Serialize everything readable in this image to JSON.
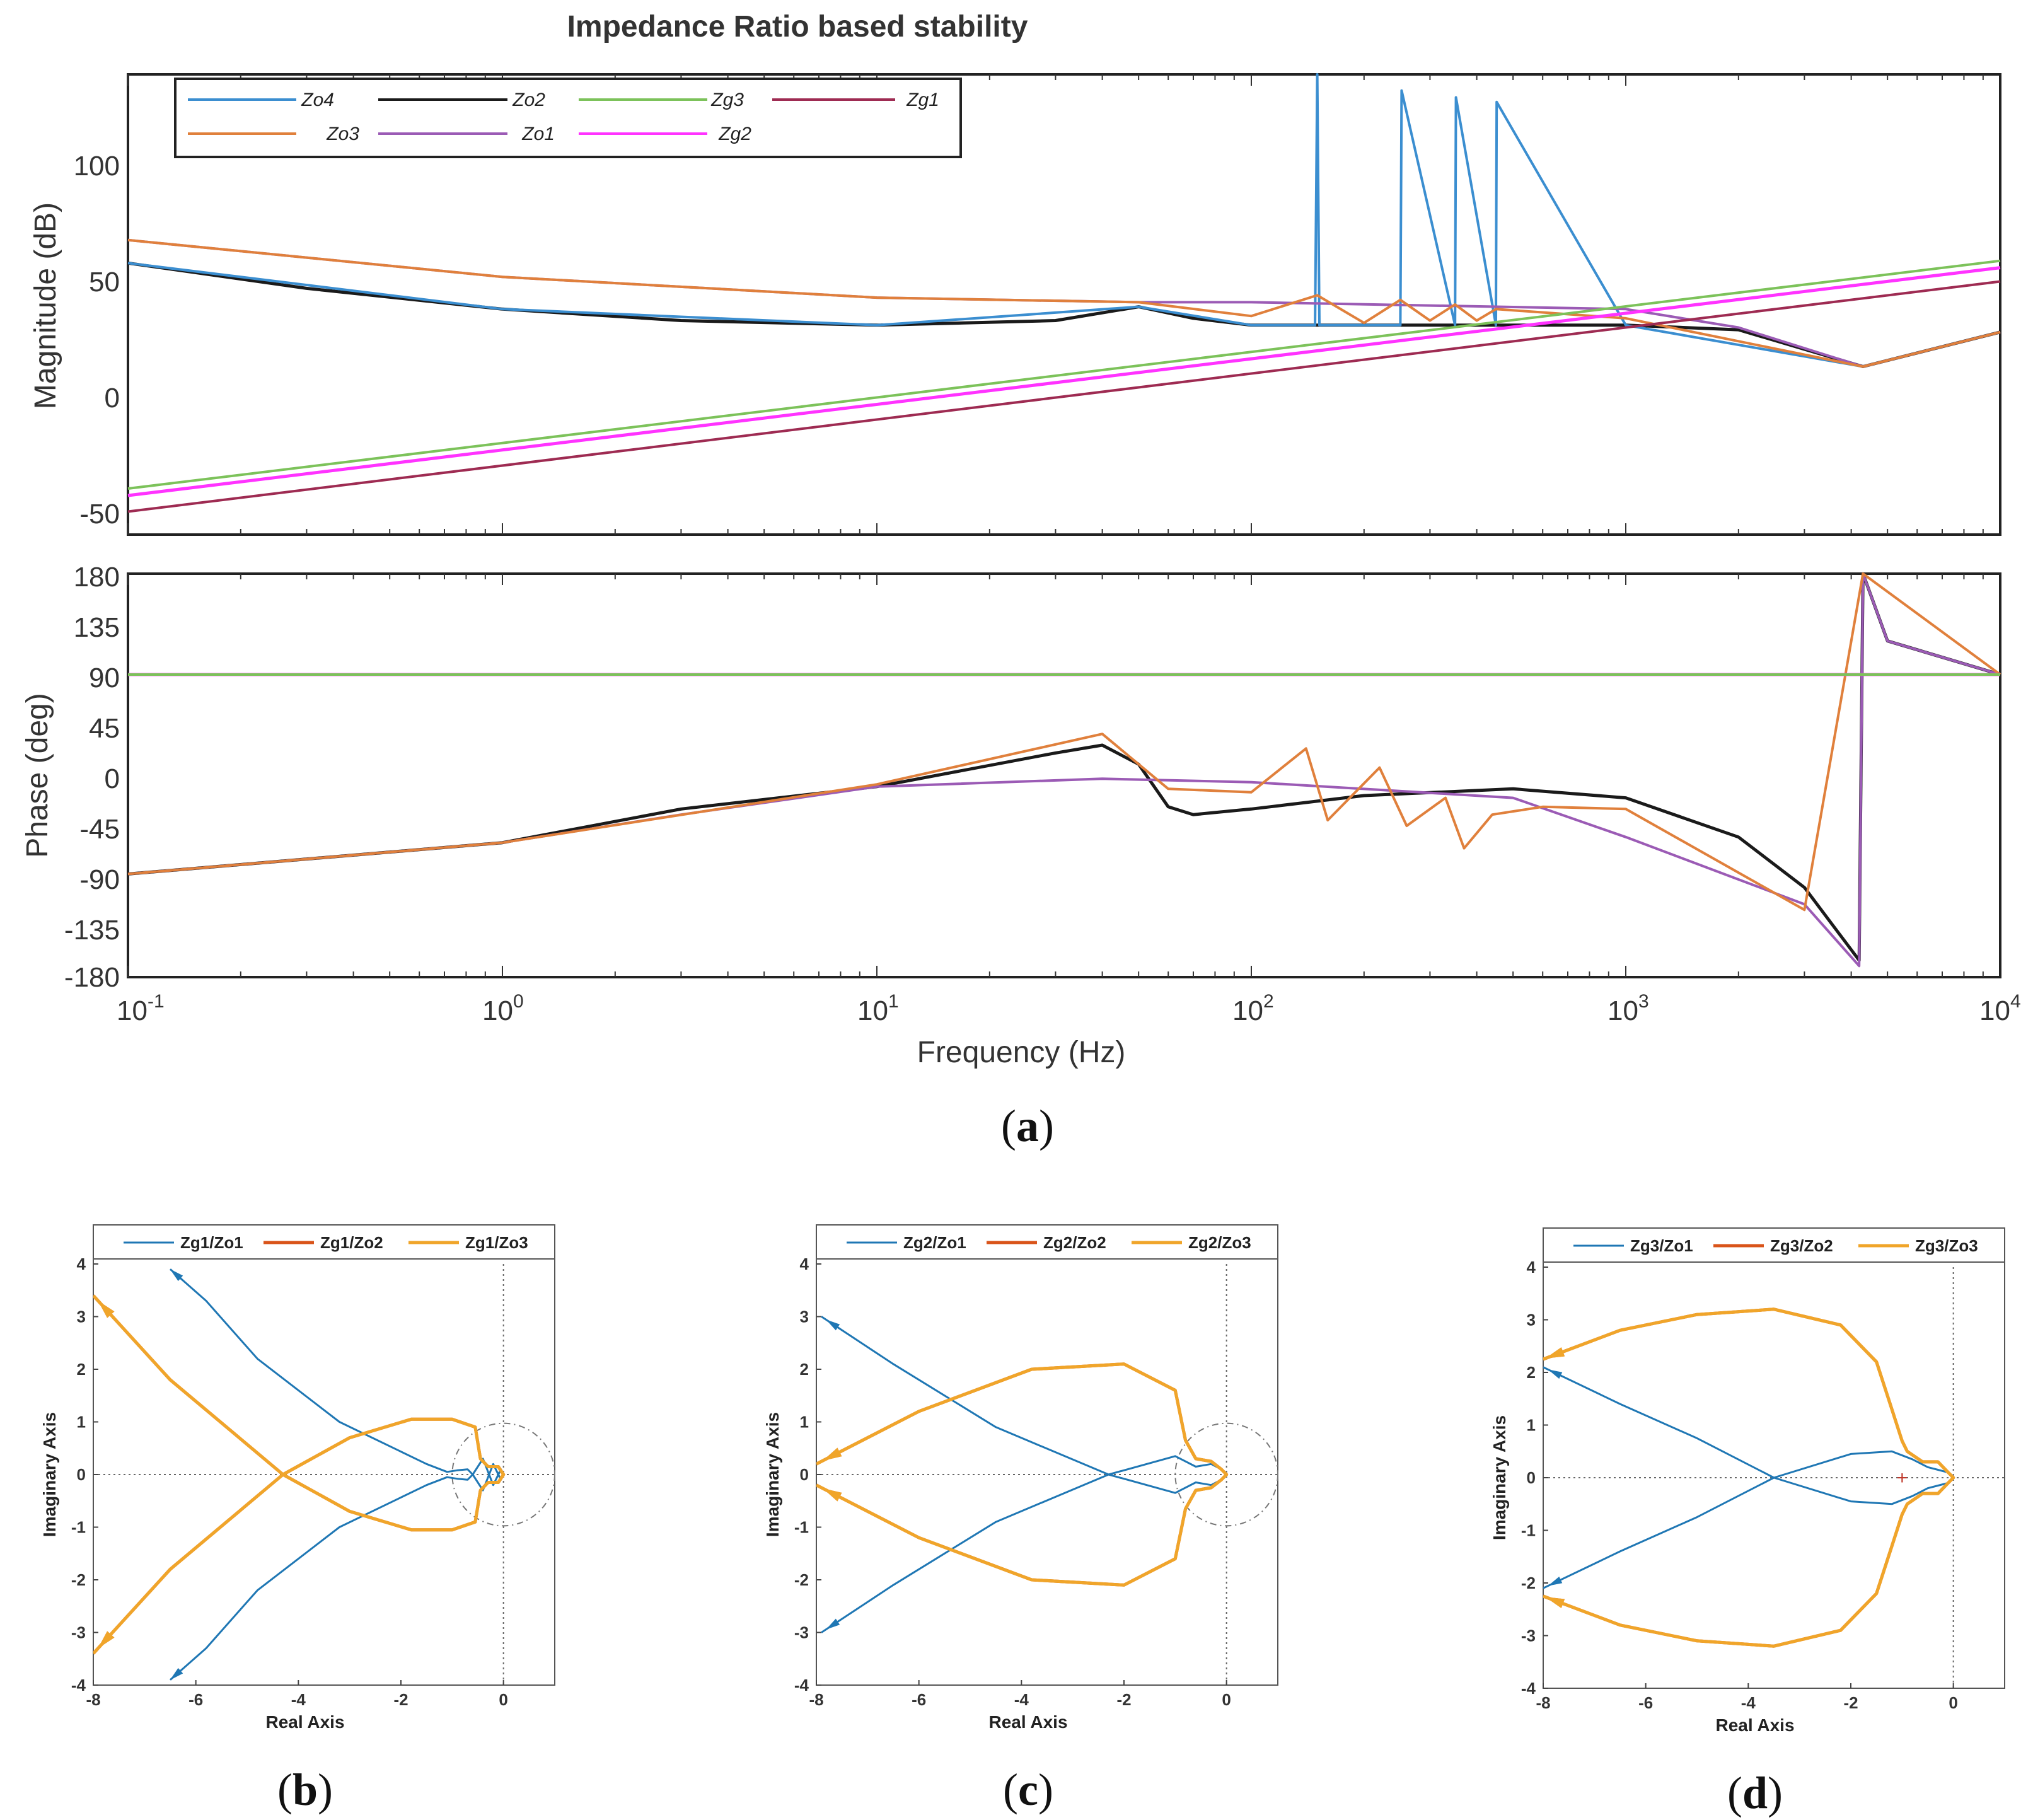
{
  "colors": {
    "Zo4": "#3b8ed0",
    "Zo3": "#e0803c",
    "Zo2": "#1a1a1a",
    "Zo1": "#9b5bb5",
    "Zg3": "#7cc25a",
    "Zg2": "#ff33ff",
    "Zg1": "#9e2b52",
    "nyq1": "#1f77b4",
    "nyq2": "#d9541a",
    "nyq3": "#f0a52a"
  },
  "bode": {
    "title": "Impedance Ratio based stability",
    "magnitude_ylabel": "Magnitude (dB)",
    "phase_ylabel": "Phase (deg)",
    "xlabel": "Frequency (Hz)",
    "caption_letter": "a",
    "legend": [
      "Zo4",
      "Zo2",
      "Zg3",
      "Zg1",
      "Zo3",
      "Zo1",
      "Zg2"
    ],
    "mag_yticks": [
      "100",
      "50",
      "0",
      "-50"
    ],
    "phase_yticks": [
      "180",
      "135",
      "90",
      "45",
      "0",
      "-45",
      "-90",
      "-135",
      "-180"
    ],
    "xtick_base": "10",
    "xtick_exps": [
      "-1",
      "0",
      "1",
      "2",
      "3",
      "4"
    ]
  },
  "nyquist": [
    {
      "caption_letter": "b",
      "legend": [
        "Zg1/Zo1",
        "Zg1/Zo2",
        "Zg1/Zo3"
      ],
      "xlabel": "Real Axis",
      "ylabel": "Imaginary Axis"
    },
    {
      "caption_letter": "c",
      "legend": [
        "Zg2/Zo1",
        "Zg2/Zo2",
        "Zg2/Zo3"
      ],
      "xlabel": "Real Axis",
      "ylabel": "Imaginary Axis"
    },
    {
      "caption_letter": "d",
      "legend": [
        "Zg3/Zo1",
        "Zg3/Zo2",
        "Zg3/Zo3"
      ],
      "xlabel": "Real Axis",
      "ylabel": "Imaginary Axis"
    }
  ],
  "nyquist_xticks": [
    "-8",
    "-6",
    "-4",
    "-2",
    "0"
  ],
  "nyquist_yticks": [
    "4",
    "3",
    "2",
    "1",
    "0",
    "-1",
    "-2",
    "-3",
    "-4"
  ],
  "chart_data": [
    {
      "type": "line",
      "title": "Impedance Ratio based stability",
      "subplot": "magnitude",
      "xlabel": "",
      "ylabel": "Magnitude (dB)",
      "xscale": "log",
      "xlim": [
        0.1,
        10000
      ],
      "ylim": [
        -60,
        140
      ],
      "series": [
        {
          "name": "Zo2",
          "x": [
            0.1,
            0.3,
            1,
            3,
            10,
            30,
            50,
            70,
            100,
            300,
            1000,
            2000,
            4300,
            10000
          ],
          "y": [
            58,
            47,
            38,
            33,
            31,
            33,
            39,
            34,
            31,
            31,
            31,
            29,
            13,
            28
          ]
        },
        {
          "name": "Zo4",
          "x": [
            0.1,
            1,
            10,
            50,
            100,
            148,
            150,
            152,
            250,
            252,
            350,
            352,
            450,
            452,
            1000,
            4300,
            10000
          ],
          "y": [
            58,
            38,
            31,
            39,
            31,
            31,
            140,
            31,
            31,
            133,
            31,
            130,
            31,
            128,
            31,
            13,
            28
          ]
        },
        {
          "name": "Zo1",
          "x": [
            0.1,
            1,
            10,
            50,
            100,
            1000,
            2000,
            4300,
            10000
          ],
          "y": [
            68,
            52,
            43,
            41,
            41,
            38,
            30,
            13,
            28
          ]
        },
        {
          "name": "Zo3",
          "x": [
            0.1,
            1,
            10,
            50,
            100,
            150,
            200,
            250,
            300,
            350,
            400,
            450,
            1000,
            4300,
            10000
          ],
          "y": [
            68,
            52,
            43,
            41,
            35,
            44,
            32,
            42,
            33,
            40,
            33,
            38,
            34,
            13,
            28
          ]
        },
        {
          "name": "Zg3",
          "x": [
            0.1,
            10000
          ],
          "y": [
            -40,
            59
          ]
        },
        {
          "name": "Zg2",
          "x": [
            0.1,
            10000
          ],
          "y": [
            -43,
            56
          ]
        },
        {
          "name": "Zg1",
          "x": [
            0.1,
            10000
          ],
          "y": [
            -50,
            50
          ]
        }
      ]
    },
    {
      "type": "line",
      "subplot": "phase",
      "xlabel": "Frequency (Hz)",
      "ylabel": "Phase (deg)",
      "xscale": "log",
      "xlim": [
        0.1,
        10000
      ],
      "ylim": [
        -180,
        180
      ],
      "series": [
        {
          "name": "Zo2",
          "x": [
            0.1,
            1,
            3,
            10,
            30,
            40,
            50,
            60,
            70,
            100,
            200,
            500,
            1000,
            2000,
            3000,
            4200,
            4300,
            5000,
            10000
          ],
          "y": [
            -88,
            -60,
            -30,
            -10,
            20,
            27,
            10,
            -28,
            -35,
            -30,
            -18,
            -12,
            -20,
            -55,
            -100,
            -165,
            180,
            120,
            90
          ]
        },
        {
          "name": "Zo1",
          "x": [
            0.1,
            1,
            3,
            10,
            40,
            100,
            500,
            1000,
            3000,
            4200,
            4300,
            5000,
            10000
          ],
          "y": [
            -88,
            -60,
            -35,
            -10,
            -3,
            -6,
            -20,
            -55,
            -115,
            -170,
            180,
            120,
            90
          ]
        },
        {
          "name": "Zo3",
          "x": [
            0.1,
            1,
            10,
            40,
            60,
            100,
            140,
            160,
            220,
            260,
            330,
            370,
            440,
            600,
            1000,
            3000,
            4300,
            10000
          ],
          "y": [
            -88,
            -60,
            -8,
            37,
            -12,
            -15,
            24,
            -40,
            7,
            -45,
            -20,
            -65,
            -35,
            -28,
            -30,
            -120,
            180,
            90
          ]
        },
        {
          "name": "Zg1",
          "x": [
            0.1,
            10000
          ],
          "y": [
            90,
            90
          ]
        },
        {
          "name": "Zg2",
          "x": [
            0.1,
            10000
          ],
          "y": [
            90,
            90
          ]
        },
        {
          "name": "Zg3",
          "x": [
            0.1,
            10000
          ],
          "y": [
            90,
            90
          ]
        }
      ]
    },
    {
      "type": "line",
      "panel": "b",
      "xlabel": "Real Axis",
      "ylabel": "Imaginary Axis",
      "xlim": [
        -8,
        1
      ],
      "ylim": [
        -4,
        4
      ],
      "series": [
        {
          "name": "Zg1/Zo1",
          "x": [
            -6.5,
            -5.8,
            -4.8,
            -3.2,
            -1.5,
            -1.1,
            -0.9,
            -0.7,
            -0.6,
            -0.4,
            -0.2,
            -0.05,
            0,
            -0.05,
            -0.2,
            -0.4,
            -0.6,
            -0.7,
            -0.9,
            -1.1,
            -1.5,
            -3.2,
            -4.8,
            -5.8,
            -6.5
          ],
          "y": [
            3.9,
            3.3,
            2.2,
            1.0,
            0.2,
            0.05,
            0.08,
            0.1,
            0.0,
            0.3,
            -0.2,
            0.1,
            0,
            -0.1,
            0.2,
            -0.3,
            0.0,
            -0.1,
            -0.08,
            -0.05,
            -0.2,
            -1.0,
            -2.2,
            -3.3,
            -3.9
          ]
        },
        {
          "name": "Zg1/Zo2",
          "x": [
            -8,
            -6.5,
            -4.3,
            -3,
            -1.8,
            -1.0,
            -0.55,
            -0.45,
            -0.3,
            -0.1,
            0,
            -0.1,
            -0.3,
            -0.45,
            -0.55,
            -1.0,
            -1.8,
            -3,
            -4.3,
            -6.5,
            -8
          ],
          "y": [
            3.4,
            1.8,
            0,
            0.7,
            1.05,
            1.05,
            0.9,
            0.3,
            0.15,
            0.15,
            0,
            -0.15,
            -0.15,
            -0.3,
            -0.9,
            -1.05,
            -1.05,
            -0.7,
            0,
            -1.8,
            -3.4
          ]
        },
        {
          "name": "Zg1/Zo3",
          "x": [
            -8,
            -6.5,
            -4.3,
            -3,
            -1.8,
            -1.0,
            -0.55,
            -0.45,
            -0.3,
            -0.1,
            0,
            -0.1,
            -0.3,
            -0.45,
            -0.55,
            -1.0,
            -1.8,
            -3,
            -4.3,
            -6.5,
            -8
          ],
          "y": [
            3.4,
            1.8,
            0,
            0.7,
            1.05,
            1.05,
            0.9,
            0.3,
            0.15,
            0.15,
            0,
            -0.15,
            -0.15,
            -0.3,
            -0.9,
            -1.05,
            -1.05,
            -0.7,
            0,
            -1.8,
            -3.4
          ]
        }
      ]
    },
    {
      "type": "line",
      "panel": "c",
      "xlabel": "Real Axis",
      "ylabel": "Imaginary Axis",
      "xlim": [
        -8,
        1
      ],
      "ylim": [
        -4,
        4
      ],
      "series": [
        {
          "name": "Zg2/Zo1",
          "x": [
            -7.9,
            -6.5,
            -4.5,
            -2.3,
            -1.0,
            -0.6,
            -0.3,
            -0.1,
            0,
            -0.1,
            -0.3,
            -0.6,
            -1.0,
            -2.3,
            -4.5,
            -6.5,
            -7.9
          ],
          "y": [
            3.0,
            2.1,
            0.9,
            0.0,
            0.35,
            0.15,
            0.2,
            0.1,
            0,
            -0.1,
            -0.2,
            -0.15,
            -0.35,
            0.0,
            -0.9,
            -2.1,
            -3.0
          ]
        },
        {
          "name": "Zg2/Zo2",
          "x": [
            -8,
            -6,
            -3.8,
            -2.0,
            -1.0,
            -0.8,
            -0.6,
            -0.3,
            -0.1,
            0,
            -0.1,
            -0.3,
            -0.6,
            -0.8,
            -1.0,
            -2.0,
            -3.8,
            -6,
            -8
          ],
          "y": [
            0.2,
            1.2,
            2.0,
            2.1,
            1.6,
            0.65,
            0.3,
            0.25,
            0.1,
            0,
            -0.1,
            -0.25,
            -0.3,
            -0.65,
            -1.6,
            -2.1,
            -2.0,
            -1.2,
            -0.2
          ]
        },
        {
          "name": "Zg2/Zo3",
          "x": [
            -8,
            -6,
            -3.8,
            -2.0,
            -1.0,
            -0.8,
            -0.6,
            -0.3,
            -0.1,
            0,
            -0.1,
            -0.3,
            -0.6,
            -0.8,
            -1.0,
            -2.0,
            -3.8,
            -6,
            -8
          ],
          "y": [
            0.2,
            1.2,
            2.0,
            2.1,
            1.6,
            0.65,
            0.3,
            0.25,
            0.1,
            0,
            -0.1,
            -0.25,
            -0.3,
            -0.65,
            -1.6,
            -2.1,
            -2.0,
            -1.2,
            -0.2
          ]
        }
      ]
    },
    {
      "type": "line",
      "panel": "d",
      "xlabel": "Real Axis",
      "ylabel": "Imaginary Axis",
      "xlim": [
        -8,
        1
      ],
      "ylim": [
        -4,
        4
      ],
      "series": [
        {
          "name": "Zg3/Zo1",
          "x": [
            -8,
            -6.5,
            -5,
            -3.5,
            -2.0,
            -1.2,
            -0.8,
            -0.5,
            -0.3,
            -0.1,
            0,
            -0.1,
            -0.3,
            -0.5,
            -0.8,
            -1.2,
            -2.0,
            -3.5,
            -5,
            -6.5,
            -8
          ],
          "y": [
            2.1,
            1.4,
            0.75,
            0.0,
            0.45,
            0.5,
            0.35,
            0.2,
            0.15,
            0.1,
            0,
            -0.1,
            -0.15,
            -0.2,
            -0.35,
            -0.5,
            -0.45,
            0.0,
            -0.75,
            -1.4,
            -2.1
          ]
        },
        {
          "name": "Zg3/Zo2",
          "x": [
            -8,
            -6.5,
            -5,
            -3.5,
            -2.2,
            -1.5,
            -1.2,
            -1.0,
            -0.9,
            -0.6,
            -0.3,
            -0.1,
            0,
            -0.1,
            -0.3,
            -0.6,
            -0.9,
            -1.0,
            -1.2,
            -1.5,
            -2.2,
            -3.5,
            -5,
            -6.5,
            -8
          ],
          "y": [
            2.25,
            2.8,
            3.1,
            3.2,
            2.9,
            2.2,
            1.3,
            0.7,
            0.5,
            0.3,
            0.3,
            0.1,
            0,
            -0.1,
            -0.3,
            -0.3,
            -0.5,
            -0.7,
            -1.3,
            -2.2,
            -2.9,
            -3.2,
            -3.1,
            -2.8,
            -2.25
          ]
        },
        {
          "name": "Zg3/Zo3",
          "x": [
            -8,
            -6.5,
            -5,
            -3.5,
            -2.2,
            -1.5,
            -1.2,
            -1.0,
            -0.9,
            -0.6,
            -0.3,
            -0.1,
            0,
            -0.1,
            -0.3,
            -0.6,
            -0.9,
            -1.0,
            -1.2,
            -1.5,
            -2.2,
            -3.5,
            -5,
            -6.5,
            -8
          ],
          "y": [
            2.25,
            2.8,
            3.1,
            3.2,
            2.9,
            2.2,
            1.3,
            0.7,
            0.5,
            0.3,
            0.3,
            0.1,
            0,
            -0.1,
            -0.3,
            -0.3,
            -0.5,
            -0.7,
            -1.3,
            -2.2,
            -2.9,
            -3.2,
            -3.1,
            -2.8,
            -2.25
          ]
        }
      ]
    }
  ]
}
